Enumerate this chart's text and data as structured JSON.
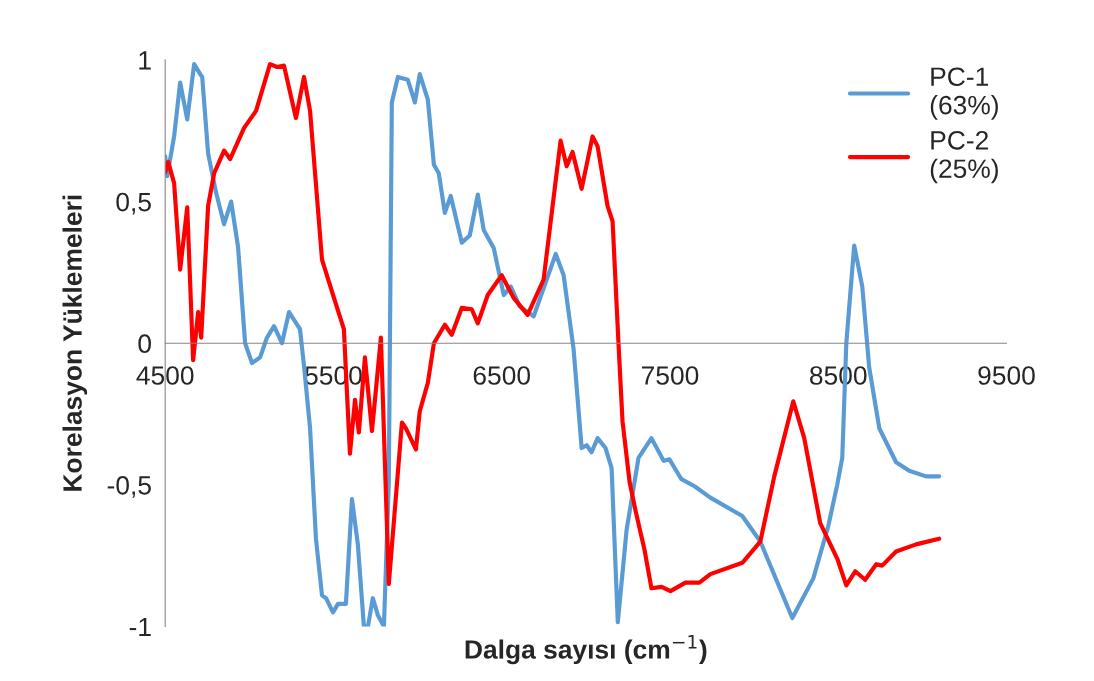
{
  "chart_data": {
    "type": "line",
    "xlabel": "Dalga sayısı (cm$^{−1}$)",
    "ylabel": "Korelasyon Yüklemeleri",
    "xlim": [
      4500,
      9500
    ],
    "xticks": [
      4500,
      5500,
      6500,
      7500,
      8500,
      9500
    ],
    "ylim": [
      -1,
      1
    ],
    "yticks": [
      {
        "value": -1,
        "label": "-1"
      },
      {
        "value": -0.5,
        "label": "-0,5"
      },
      0,
      {
        "value": 0.5,
        "label": "0,5"
      },
      1
    ],
    "grid": false,
    "legend": "top right",
    "marker": "none",
    "line_style": "solid",
    "series": [
      {
        "name": "PC-1\n(63%)",
        "color": "#5b9bd5",
        "x": [
          4500,
          4512,
          4553,
          4589,
          4631,
          4672,
          4708,
          4720,
          4755,
          4803,
          4850,
          4892,
          4933,
          4975,
          5016,
          5064,
          5105,
          5147,
          5194,
          5236,
          5301,
          5325,
          5361,
          5396,
          5432,
          5456,
          5497,
          5527,
          5574,
          5610,
          5645,
          5681,
          5705,
          5734,
          5764,
          5800,
          5829,
          5847,
          5883,
          5942,
          5984,
          6013,
          6061,
          6097,
          6126,
          6162,
          6197,
          6263,
          6310,
          6358,
          6393,
          6453,
          6512,
          6554,
          6607,
          6690,
          6821,
          6868,
          6927,
          6975,
          7005,
          7034,
          7070,
          7117,
          7153,
          7190,
          7242,
          7313,
          7390,
          7462,
          7497,
          7568,
          7646,
          7740,
          7930,
          8037,
          8227,
          8352,
          8441,
          8494,
          8524,
          8548,
          8595,
          8643,
          8684,
          8744,
          8844,
          8922,
          9022,
          9100
        ],
        "values": [
          0.66,
          0.59,
          0.73,
          0.92,
          0.79,
          0.985,
          0.95,
          0.94,
          0.67,
          0.53,
          0.42,
          0.5,
          0.34,
          0.0,
          -0.07,
          -0.05,
          0.02,
          0.06,
          0.0,
          0.11,
          0.05,
          -0.08,
          -0.3,
          -0.69,
          -0.89,
          -0.9,
          -0.95,
          -0.92,
          -0.92,
          -0.55,
          -0.71,
          -1.0,
          -1.0,
          -0.9,
          -0.96,
          -1.0,
          -0.49,
          0.85,
          0.94,
          0.93,
          0.85,
          0.95,
          0.86,
          0.63,
          0.6,
          0.46,
          0.52,
          0.355,
          0.38,
          0.525,
          0.4,
          0.335,
          0.17,
          0.2,
          0.13,
          0.095,
          0.315,
          0.24,
          -0.02,
          -0.37,
          -0.36,
          -0.385,
          -0.335,
          -0.37,
          -0.44,
          -0.985,
          -0.66,
          -0.405,
          -0.335,
          -0.415,
          -0.41,
          -0.48,
          -0.505,
          -0.545,
          -0.61,
          -0.7,
          -0.97,
          -0.83,
          -0.645,
          -0.5,
          -0.405,
          0.0,
          0.345,
          0.2,
          -0.085,
          -0.3,
          -0.42,
          -0.45,
          -0.47,
          -0.47
        ]
      },
      {
        "name": "PC-2\n(25%)",
        "color": "#ff0000",
        "x": [
          4500,
          4518,
          4553,
          4589,
          4631,
          4666,
          4696,
          4714,
          4755,
          4791,
          4850,
          4886,
          4969,
          5040,
          5123,
          5165,
          5206,
          5277,
          5325,
          5361,
          5432,
          5503,
          5562,
          5598,
          5628,
          5651,
          5687,
          5729,
          5782,
          5829,
          5907,
          5930,
          5990,
          6013,
          6061,
          6097,
          6162,
          6203,
          6263,
          6322,
          6358,
          6417,
          6500,
          6571,
          6654,
          6749,
          6850,
          6886,
          6921,
          6975,
          7040,
          7070,
          7129,
          7159,
          7194,
          7218,
          7260,
          7295,
          7349,
          7390,
          7450,
          7503,
          7592,
          7675,
          7740,
          7930,
          8037,
          8120,
          8233,
          8298,
          8393,
          8494,
          8548,
          8601,
          8660,
          8726,
          8761,
          8844,
          8963,
          9100
        ],
        "values": [
          0.605,
          0.64,
          0.565,
          0.26,
          0.48,
          -0.06,
          0.11,
          0.02,
          0.485,
          0.6,
          0.68,
          0.65,
          0.76,
          0.82,
          0.985,
          0.975,
          0.98,
          0.795,
          0.94,
          0.82,
          0.295,
          0.16,
          0.05,
          -0.39,
          -0.2,
          -0.315,
          -0.05,
          -0.31,
          0.02,
          -0.85,
          -0.28,
          -0.3,
          -0.375,
          -0.24,
          -0.14,
          0.0,
          0.065,
          0.03,
          0.125,
          0.12,
          0.07,
          0.17,
          0.24,
          0.16,
          0.1,
          0.225,
          0.715,
          0.625,
          0.675,
          0.545,
          0.73,
          0.695,
          0.485,
          0.43,
          0.0,
          -0.275,
          -0.49,
          -0.59,
          -0.73,
          -0.865,
          -0.86,
          -0.875,
          -0.845,
          -0.845,
          -0.815,
          -0.775,
          -0.7,
          -0.47,
          -0.205,
          -0.335,
          -0.635,
          -0.76,
          -0.855,
          -0.805,
          -0.835,
          -0.78,
          -0.785,
          -0.735,
          -0.71,
          -0.69
        ]
      }
    ]
  }
}
